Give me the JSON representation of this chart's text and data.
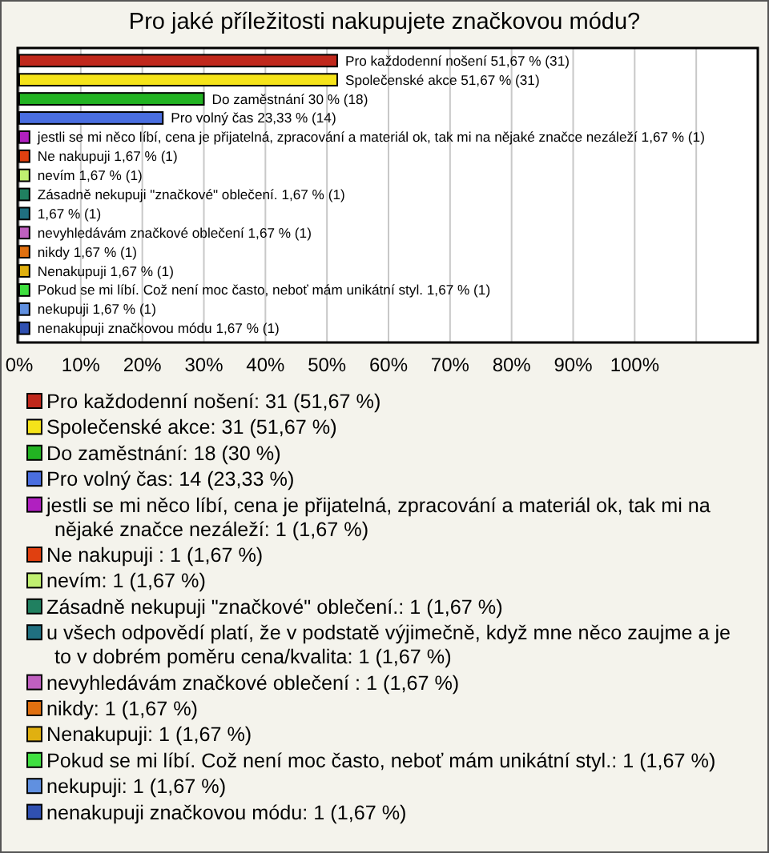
{
  "chart_data": {
    "type": "bar",
    "orientation": "horizontal",
    "title": "Pro jaké příležitosti nakupujete značkovou módu?",
    "categories": [
      null,
      null,
      null,
      null,
      null,
      null,
      null,
      null,
      null,
      null,
      null,
      null,
      null,
      null,
      null
    ],
    "series": [
      {
        "name": "Pro každodenní nošení: 31 (51,67 %)",
        "color": "#c0281c",
        "values": [
          51.67,
          null,
          null,
          null,
          null,
          null,
          null,
          null,
          null,
          null,
          null,
          null,
          null,
          null,
          null
        ],
        "value_labels": [
          "Pro každodenní nošení 51,67 % (31)",
          null,
          null,
          null,
          null,
          null,
          null,
          null,
          null,
          null,
          null,
          null,
          null,
          null,
          null
        ]
      },
      {
        "name": "Společenské akce: 31 (51,67 %)",
        "color": "#f5e31a",
        "values": [
          null,
          51.67,
          null,
          null,
          null,
          null,
          null,
          null,
          null,
          null,
          null,
          null,
          null,
          null,
          null
        ],
        "value_labels": [
          null,
          "Společenské akce 51,67 % (31)",
          null,
          null,
          null,
          null,
          null,
          null,
          null,
          null,
          null,
          null,
          null,
          null,
          null
        ]
      },
      {
        "name": "Do zaměstnání: 18 (30 %)",
        "color": "#22b322",
        "values": [
          null,
          null,
          30,
          null,
          null,
          null,
          null,
          null,
          null,
          null,
          null,
          null,
          null,
          null,
          null
        ],
        "value_labels": [
          null,
          null,
          "Do zaměstnání 30 % (18)",
          null,
          null,
          null,
          null,
          null,
          null,
          null,
          null,
          null,
          null,
          null,
          null
        ]
      },
      {
        "name": "Pro volný čas: 14 (23,33 %)",
        "color": "#4a6ee0",
        "values": [
          null,
          null,
          null,
          23.33,
          null,
          null,
          null,
          null,
          null,
          null,
          null,
          null,
          null,
          null,
          null
        ],
        "value_labels": [
          null,
          null,
          null,
          "Pro volný čas 23,33 % (14)",
          null,
          null,
          null,
          null,
          null,
          null,
          null,
          null,
          null,
          null,
          null
        ]
      },
      {
        "name": "jestli se mi něco líbí, cena je přijatelná, zpracování a materiál ok, tak mi na nějaké značce nezáleží: 1 (1,67 %)",
        "color": "#b020c0",
        "values": [
          null,
          null,
          null,
          null,
          1.67,
          null,
          null,
          null,
          null,
          null,
          null,
          null,
          null,
          null,
          null
        ],
        "value_labels": [
          null,
          null,
          null,
          null,
          "jestli se mi něco líbí, cena je přijatelná, zpracování a materiál ok, tak mi na nějaké značce nezáleží 1,67 % (1)",
          null,
          null,
          null,
          null,
          null,
          null,
          null,
          null,
          null,
          null
        ]
      },
      {
        "name": "Ne nakupuji : 1 (1,67 %)",
        "color": "#e04010",
        "values": [
          null,
          null,
          null,
          null,
          null,
          1.67,
          null,
          null,
          null,
          null,
          null,
          null,
          null,
          null,
          null
        ],
        "value_labels": [
          null,
          null,
          null,
          null,
          null,
          "Ne nakupuji  1,67 % (1)",
          null,
          null,
          null,
          null,
          null,
          null,
          null,
          null,
          null
        ]
      },
      {
        "name": "nevím: 1 (1,67 %)",
        "color": "#c0f070",
        "values": [
          null,
          null,
          null,
          null,
          null,
          null,
          1.67,
          null,
          null,
          null,
          null,
          null,
          null,
          null,
          null
        ],
        "value_labels": [
          null,
          null,
          null,
          null,
          null,
          null,
          "nevím 1,67 % (1)",
          null,
          null,
          null,
          null,
          null,
          null,
          null,
          null
        ]
      },
      {
        "name": "Zásadně nekupuji \"značkové\" oblečení.: 1 (1,67 %)",
        "color": "#208060",
        "values": [
          null,
          null,
          null,
          null,
          null,
          null,
          null,
          1.67,
          null,
          null,
          null,
          null,
          null,
          null,
          null
        ],
        "value_labels": [
          null,
          null,
          null,
          null,
          null,
          null,
          null,
          "Zásadně nekupuji \"značkové\" oblečení. 1,67 % (1)",
          null,
          null,
          null,
          null,
          null,
          null,
          null
        ]
      },
      {
        "name": "u všech odpovědí platí, že v podstatě výjimečně, když mne něco zaujme a je to v dobrém poměru cena/kvalita: 1 (1,67 %)",
        "color": "#207080",
        "values": [
          null,
          null,
          null,
          null,
          null,
          null,
          null,
          null,
          1.67,
          null,
          null,
          null,
          null,
          null,
          null
        ],
        "value_labels": [
          null,
          null,
          null,
          null,
          null,
          null,
          null,
          null,
          "1,67 % (1)",
          null,
          null,
          null,
          null,
          null,
          null
        ]
      },
      {
        "name": "nevyhledávám značkové oblečení : 1 (1,67 %)",
        "color": "#c060c0",
        "values": [
          null,
          null,
          null,
          null,
          null,
          null,
          null,
          null,
          null,
          1.67,
          null,
          null,
          null,
          null,
          null
        ],
        "value_labels": [
          null,
          null,
          null,
          null,
          null,
          null,
          null,
          null,
          null,
          "nevyhledávám značkové oblečení  1,67 % (1)",
          null,
          null,
          null,
          null,
          null
        ]
      },
      {
        "name": "nikdy: 1 (1,67 %)",
        "color": "#e07010",
        "values": [
          null,
          null,
          null,
          null,
          null,
          null,
          null,
          null,
          null,
          null,
          1.67,
          null,
          null,
          null,
          null
        ],
        "value_labels": [
          null,
          null,
          null,
          null,
          null,
          null,
          null,
          null,
          null,
          null,
          "nikdy 1,67 % (1)",
          null,
          null,
          null,
          null
        ]
      },
      {
        "name": "Nenakupuji: 1 (1,67 %)",
        "color": "#e0b010",
        "values": [
          null,
          null,
          null,
          null,
          null,
          null,
          null,
          null,
          null,
          null,
          null,
          1.67,
          null,
          null,
          null
        ],
        "value_labels": [
          null,
          null,
          null,
          null,
          null,
          null,
          null,
          null,
          null,
          null,
          null,
          "Nenakupuji 1,67 % (1)",
          null,
          null,
          null
        ]
      },
      {
        "name": "Pokud se mi líbí. Což není moc často, neboť mám unikátní styl.: 1 (1,67 %)",
        "color": "#40e040",
        "values": [
          null,
          null,
          null,
          null,
          null,
          null,
          null,
          null,
          null,
          null,
          null,
          null,
          1.67,
          null,
          null
        ],
        "value_labels": [
          null,
          null,
          null,
          null,
          null,
          null,
          null,
          null,
          null,
          null,
          null,
          null,
          "Pokud se mi líbí. Což není moc často, neboť mám unikátní styl. 1,67 % (1)",
          null,
          null
        ]
      },
      {
        "name": "nekupuji: 1 (1,67 %)",
        "color": "#6090e0",
        "values": [
          null,
          null,
          null,
          null,
          null,
          null,
          null,
          null,
          null,
          null,
          null,
          null,
          null,
          1.67,
          null
        ],
        "value_labels": [
          null,
          null,
          null,
          null,
          null,
          null,
          null,
          null,
          null,
          null,
          null,
          null,
          null,
          "nekupuji 1,67 % (1)",
          null
        ]
      },
      {
        "name": "nenakupuji značkovou módu: 1 (1,67 %)",
        "color": "#3050b0",
        "values": [
          null,
          null,
          null,
          null,
          null,
          null,
          null,
          null,
          null,
          null,
          null,
          null,
          null,
          null,
          1.67
        ],
        "value_labels": [
          null,
          null,
          null,
          null,
          null,
          null,
          null,
          null,
          null,
          null,
          null,
          null,
          null,
          null,
          "nenakupuji značkovou módu 1,67 % (1)"
        ]
      }
    ],
    "xlim": [
      0,
      120
    ],
    "xticks": [
      {
        "value": 0,
        "label": "0%"
      },
      {
        "value": 10,
        "label": "10%"
      },
      {
        "value": 20,
        "label": "20%"
      },
      {
        "value": 30,
        "label": "30%"
      },
      {
        "value": 40,
        "label": "40%"
      },
      {
        "value": 50,
        "label": "50%"
      },
      {
        "value": 60,
        "label": "60%"
      },
      {
        "value": 70,
        "label": "70%"
      },
      {
        "value": 80,
        "label": "80%"
      },
      {
        "value": 90,
        "label": "90%"
      },
      {
        "value": 100,
        "label": "100%"
      },
      {
        "value": 110,
        "label": null
      }
    ],
    "grid": "x",
    "legend": "bottom",
    "tick_labels": "x"
  }
}
